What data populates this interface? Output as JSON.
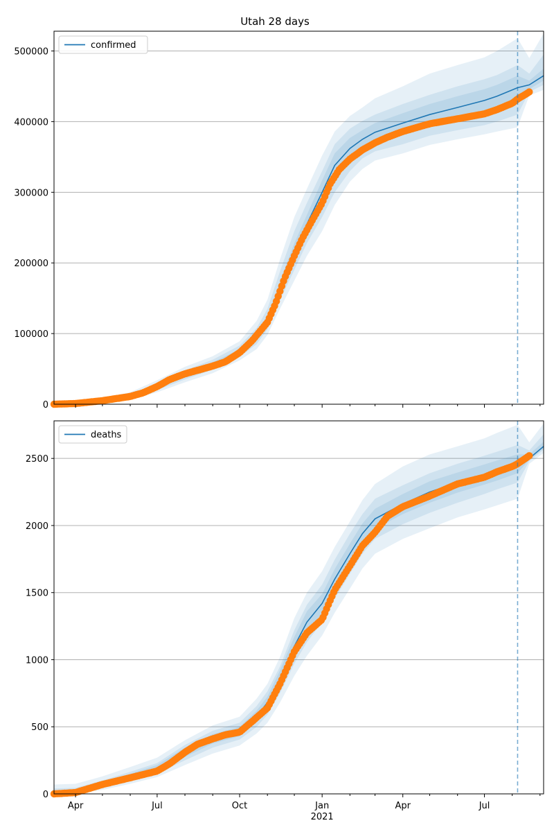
{
  "title": "Utah 28 days",
  "colors": {
    "model": "#1f77b4",
    "observed": "#ff7f0e",
    "band": "#1f77b4",
    "grid": "#b0b0b0"
  },
  "x_axis": {
    "start": "2020-03-08",
    "end": "2021-09-05",
    "forecast_date": "2021-08-07",
    "month_ticks": [
      "2020-04-01",
      "2020-05-01",
      "2020-06-01",
      "2020-07-01",
      "2020-08-01",
      "2020-09-01",
      "2020-10-01",
      "2020-11-01",
      "2020-12-01",
      "2021-01-01",
      "2021-02-01",
      "2021-03-01",
      "2021-04-01",
      "2021-05-01",
      "2021-06-01",
      "2021-07-01",
      "2021-08-01",
      "2021-09-01"
    ],
    "labeled_ticks": [
      {
        "date": "2020-04-01",
        "label": "Apr"
      },
      {
        "date": "2020-07-01",
        "label": "Jul"
      },
      {
        "date": "2020-10-01",
        "label": "Oct"
      },
      {
        "date": "2021-01-01",
        "label": "Jan",
        "sublabel": "2021"
      },
      {
        "date": "2021-04-01",
        "label": "Apr"
      },
      {
        "date": "2021-07-01",
        "label": "Jul"
      }
    ]
  },
  "chart_data": [
    {
      "type": "line",
      "legend": "confirmed",
      "legend_position": "top-left",
      "grid": "y",
      "ylim": [
        0,
        528000
      ],
      "yticks": [
        0,
        100000,
        200000,
        300000,
        400000,
        500000
      ],
      "ytick_labels": [
        "0",
        "100000",
        "200000",
        "300000",
        "400000",
        "500000"
      ],
      "model": {
        "x": [
          "2020-03-08",
          "2020-05-01",
          "2020-06-01",
          "2020-07-01",
          "2020-08-01",
          "2020-09-01",
          "2020-10-01",
          "2020-10-20",
          "2020-11-01",
          "2020-11-15",
          "2020-12-01",
          "2020-12-15",
          "2021-01-01",
          "2021-01-15",
          "2021-02-01",
          "2021-02-15",
          "2021-03-01",
          "2021-04-01",
          "2021-05-01",
          "2021-06-01",
          "2021-07-01",
          "2021-07-15",
          "2021-08-07",
          "2021-08-20",
          "2021-09-05"
        ],
        "y": [
          0,
          5000,
          11000,
          25000,
          42000,
          56000,
          74000,
          95000,
          118000,
          165000,
          215000,
          255000,
          300000,
          338000,
          362000,
          375000,
          385000,
          398000,
          410000,
          420000,
          430000,
          436000,
          448000,
          452000,
          465000
        ]
      },
      "bands": [
        {
          "lower": [
            0,
            2000,
            6000,
            17000,
            31000,
            44000,
            62000,
            78000,
            98000,
            135000,
            175000,
            210000,
            245000,
            282000,
            315000,
            333000,
            345000,
            355000,
            367000,
            375000,
            382000,
            386000,
            392000,
            437000,
            445000
          ],
          "upper": [
            0,
            9000,
            17000,
            34000,
            53000,
            68000,
            89000,
            118000,
            148000,
            205000,
            265000,
            305000,
            352000,
            386000,
            408000,
            420000,
            433000,
            450000,
            468000,
            480000,
            491000,
            500000,
            518000,
            490000,
            525000
          ]
        },
        {
          "lower": [
            0,
            3000,
            8000,
            20000,
            35000,
            49000,
            67000,
            85000,
            106000,
            147000,
            190000,
            228000,
            265000,
            300000,
            330000,
            348000,
            358000,
            368000,
            380000,
            388000,
            395000,
            400000,
            410000,
            442000,
            452000
          ],
          "upper": [
            0,
            7000,
            14000,
            30000,
            48000,
            63000,
            83000,
            108000,
            135000,
            188000,
            245000,
            285000,
            330000,
            368000,
            390000,
            401000,
            410000,
            425000,
            438000,
            450000,
            460000,
            466000,
            480000,
            468000,
            495000
          ]
        },
        {
          "lower": [
            0,
            4000,
            9500,
            22500,
            38500,
            52500,
            70500,
            90000,
            112000,
            156000,
            202000,
            242000,
            283000,
            320000,
            347000,
            362000,
            372000,
            384000,
            395000,
            404000,
            414000,
            418000,
            428000,
            446000,
            458000
          ],
          "upper": [
            0,
            6000,
            12500,
            27500,
            45500,
            59500,
            77500,
            100000,
            124000,
            174000,
            228000,
            268000,
            317000,
            355000,
            377000,
            388000,
            398000,
            412000,
            425000,
            436000,
            446000,
            452000,
            465000,
            458000,
            475000
          ]
        }
      ],
      "observed": {
        "x": [
          "2020-03-08",
          "2020-04-01",
          "2020-05-01",
          "2020-06-01",
          "2020-06-15",
          "2020-07-01",
          "2020-07-15",
          "2020-08-01",
          "2020-08-15",
          "2020-09-01",
          "2020-09-15",
          "2020-10-01",
          "2020-10-15",
          "2020-11-01",
          "2020-11-10",
          "2020-11-20",
          "2020-12-01",
          "2020-12-10",
          "2020-12-20",
          "2021-01-01",
          "2021-01-10",
          "2021-01-20",
          "2021-02-01",
          "2021-02-15",
          "2021-03-01",
          "2021-03-15",
          "2021-04-01",
          "2021-05-01",
          "2021-06-01",
          "2021-07-01",
          "2021-07-15",
          "2021-08-01",
          "2021-08-07",
          "2021-08-15",
          "2021-08-20"
        ],
        "y": [
          0,
          1000,
          5000,
          11000,
          16000,
          25000,
          35000,
          43000,
          48000,
          54000,
          60000,
          73000,
          90000,
          116000,
          142000,
          178000,
          210000,
          235000,
          258000,
          285000,
          312000,
          332000,
          347000,
          360000,
          370000,
          378000,
          386000,
          397000,
          404000,
          411000,
          417000,
          426000,
          432000,
          438000,
          442000
        ]
      }
    },
    {
      "type": "line",
      "legend": "deaths",
      "legend_position": "top-left",
      "grid": "y",
      "ylim": [
        0,
        2780
      ],
      "yticks": [
        0,
        500,
        1000,
        1500,
        2000,
        2500
      ],
      "ytick_labels": [
        "0",
        "500",
        "1000",
        "1500",
        "2000",
        "2500"
      ],
      "model": {
        "x": [
          "2020-03-08",
          "2020-04-01",
          "2020-05-01",
          "2020-06-01",
          "2020-07-01",
          "2020-08-01",
          "2020-09-01",
          "2020-10-01",
          "2020-10-20",
          "2020-11-01",
          "2020-11-15",
          "2020-12-01",
          "2020-12-15",
          "2021-01-01",
          "2021-01-15",
          "2021-02-01",
          "2021-02-15",
          "2021-03-01",
          "2021-04-01",
          "2021-05-01",
          "2021-06-01",
          "2021-07-01",
          "2021-07-15",
          "2021-08-07",
          "2021-08-20",
          "2021-09-05"
        ],
        "y": [
          0,
          10,
          70,
          130,
          190,
          310,
          410,
          465,
          580,
          680,
          860,
          1100,
          1280,
          1420,
          1600,
          1790,
          1940,
          2050,
          2160,
          2250,
          2320,
          2380,
          2410,
          2460,
          2500,
          2590
        ]
      },
      "bands": [
        {
          "lower": [
            0,
            0,
            30,
            75,
            125,
            215,
            300,
            360,
            450,
            530,
            680,
            880,
            1030,
            1180,
            1350,
            1530,
            1680,
            1790,
            1900,
            1980,
            2060,
            2120,
            2150,
            2200,
            2460,
            2540
          ],
          "upper": [
            70,
            75,
            130,
            200,
            270,
            400,
            510,
            575,
            710,
            820,
            1020,
            1310,
            1500,
            1660,
            1840,
            2030,
            2190,
            2310,
            2440,
            2530,
            2590,
            2650,
            2690,
            2750,
            2620,
            2760
          ]
        },
        {
          "lower": [
            0,
            0,
            45,
            95,
            150,
            250,
            345,
            405,
            500,
            590,
            750,
            970,
            1130,
            1280,
            1455,
            1640,
            1790,
            1900,
            2010,
            2095,
            2170,
            2235,
            2270,
            2320,
            2480,
            2565
          ],
          "upper": [
            40,
            45,
            100,
            165,
            230,
            365,
            470,
            530,
            655,
            765,
            950,
            1220,
            1410,
            1560,
            1745,
            1940,
            2085,
            2200,
            2300,
            2390,
            2460,
            2520,
            2550,
            2600,
            2560,
            2680
          ]
        },
        {
          "lower": [
            0,
            0,
            55,
            110,
            165,
            275,
            375,
            430,
            540,
            635,
            800,
            1030,
            1200,
            1350,
            1525,
            1715,
            1865,
            1975,
            2085,
            2170,
            2245,
            2305,
            2335,
            2390,
            2490,
            2575
          ],
          "upper": [
            20,
            25,
            85,
            150,
            215,
            345,
            445,
            500,
            620,
            725,
            920,
            1170,
            1360,
            1490,
            1675,
            1865,
            2015,
            2125,
            2235,
            2330,
            2395,
            2455,
            2485,
            2530,
            2530,
            2625
          ]
        }
      ],
      "observed": {
        "x": [
          "2020-03-08",
          "2020-04-01",
          "2020-05-01",
          "2020-06-01",
          "2020-07-01",
          "2020-07-15",
          "2020-08-01",
          "2020-08-15",
          "2020-09-01",
          "2020-09-15",
          "2020-10-01",
          "2020-10-15",
          "2020-11-01",
          "2020-11-15",
          "2020-12-01",
          "2020-12-15",
          "2021-01-01",
          "2021-01-15",
          "2021-02-01",
          "2021-02-15",
          "2021-03-01",
          "2021-03-15",
          "2021-04-01",
          "2021-05-01",
          "2021-06-01",
          "2021-07-01",
          "2021-07-15",
          "2021-08-01",
          "2021-08-07",
          "2021-08-20"
        ],
        "y": [
          0,
          10,
          70,
          120,
          170,
          225,
          310,
          370,
          410,
          440,
          460,
          540,
          640,
          820,
          1060,
          1200,
          1300,
          1520,
          1700,
          1850,
          1950,
          2070,
          2140,
          2220,
          2310,
          2360,
          2400,
          2440,
          2460,
          2520
        ]
      }
    }
  ]
}
